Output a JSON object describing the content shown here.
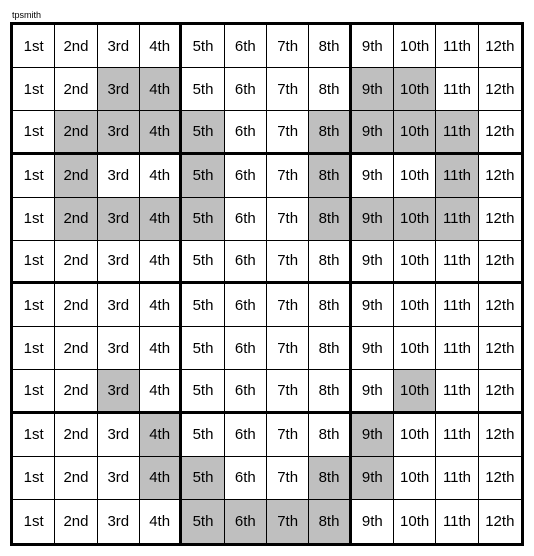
{
  "caption": "tpsmith",
  "grid": {
    "rows": 12,
    "cols": 12,
    "block_rows": 3,
    "block_cols": 4,
    "labels": [
      "1st",
      "2nd",
      "3rd",
      "4th",
      "5th",
      "6th",
      "7th",
      "8th",
      "9th",
      "10th",
      "11th",
      "12th"
    ],
    "shaded_color": "#bfbfbf",
    "bg_color": "#ffffff",
    "border_thin": "1px solid #000",
    "border_thick": "3px solid #000",
    "font_size": 15,
    "shaded": [
      [
        0,
        0,
        0,
        0,
        0,
        0,
        0,
        0,
        0,
        0,
        0,
        0
      ],
      [
        0,
        0,
        1,
        1,
        0,
        0,
        0,
        0,
        1,
        1,
        0,
        0
      ],
      [
        0,
        1,
        1,
        1,
        1,
        0,
        0,
        1,
        1,
        1,
        1,
        0
      ],
      [
        0,
        1,
        0,
        0,
        1,
        0,
        0,
        1,
        0,
        0,
        1,
        0
      ],
      [
        0,
        1,
        1,
        1,
        1,
        0,
        0,
        1,
        1,
        1,
        1,
        0
      ],
      [
        0,
        0,
        0,
        0,
        0,
        0,
        0,
        0,
        0,
        0,
        0,
        0
      ],
      [
        0,
        0,
        0,
        0,
        0,
        0,
        0,
        0,
        0,
        0,
        0,
        0
      ],
      [
        0,
        0,
        0,
        0,
        0,
        0,
        0,
        0,
        0,
        0,
        0,
        0
      ],
      [
        0,
        0,
        1,
        0,
        0,
        0,
        0,
        0,
        0,
        1,
        0,
        0
      ],
      [
        0,
        0,
        0,
        1,
        0,
        0,
        0,
        0,
        1,
        0,
        0,
        0
      ],
      [
        0,
        0,
        0,
        1,
        1,
        0,
        0,
        1,
        1,
        0,
        0,
        0
      ],
      [
        0,
        0,
        0,
        0,
        1,
        1,
        1,
        1,
        0,
        0,
        0,
        0
      ]
    ]
  }
}
